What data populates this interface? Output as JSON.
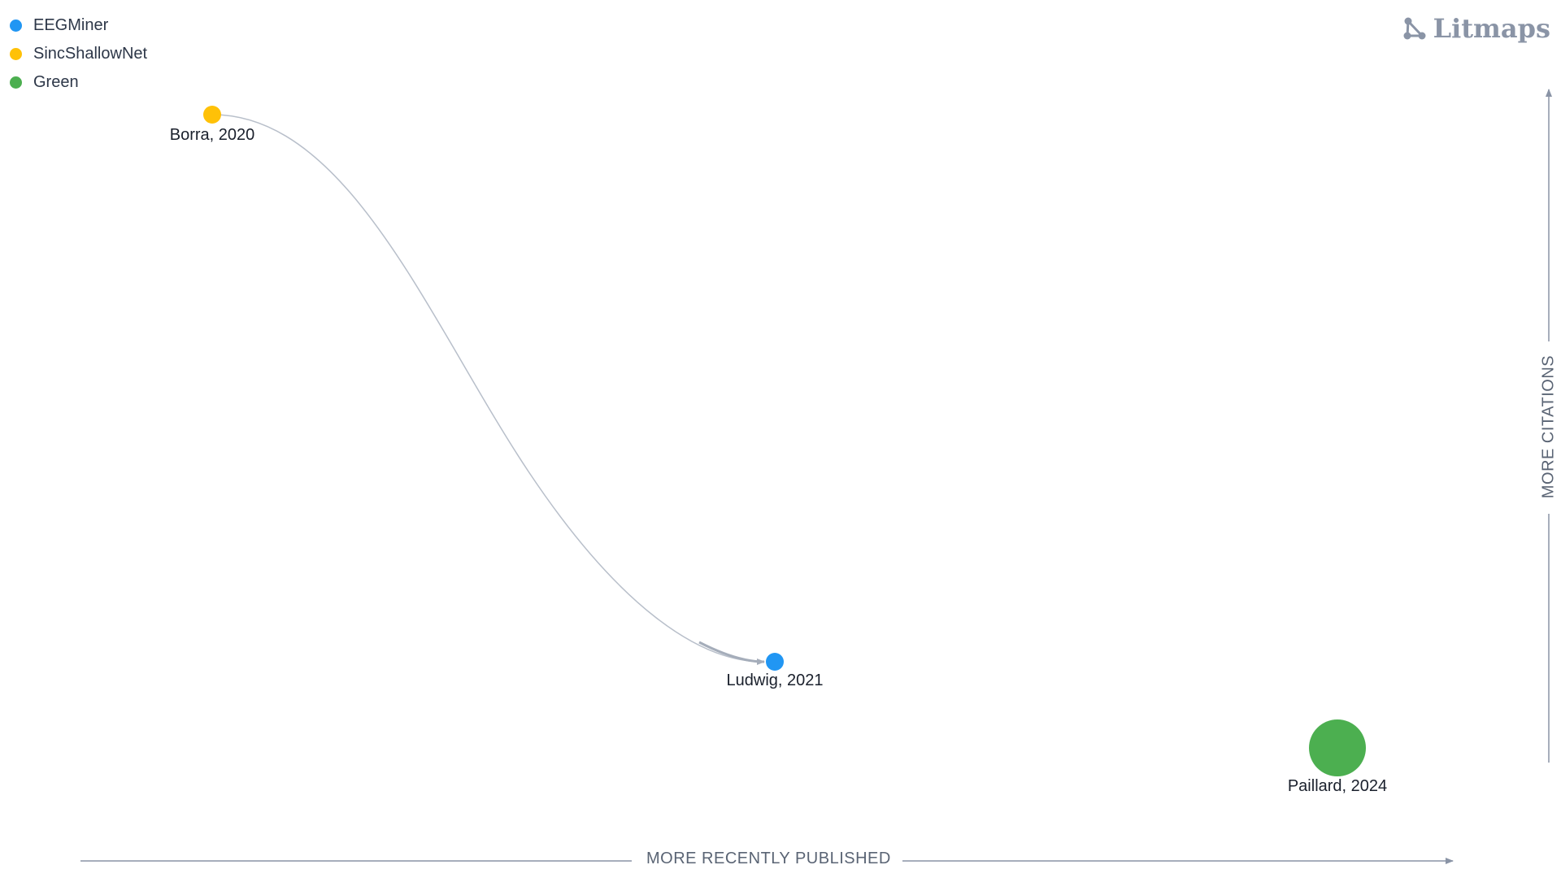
{
  "legend": {
    "items": [
      {
        "label": "EEGMiner",
        "color": "#2196f3"
      },
      {
        "label": "SincShallowNet",
        "color": "#ffc107"
      },
      {
        "label": "Green",
        "color": "#4caf50"
      }
    ]
  },
  "logo": {
    "text": "Litmaps",
    "icon": "litmaps-logo-icon"
  },
  "axes": {
    "x_label": "MORE RECENTLY PUBLISHED",
    "y_label": "MORE CITATIONS"
  },
  "nodes": [
    {
      "id": "borra",
      "label": "Borra, 2020",
      "color": "#ffc107"
    },
    {
      "id": "ludwig",
      "label": "Ludwig, 2021",
      "color": "#2196f3"
    },
    {
      "id": "paillard",
      "label": "Paillard, 2024",
      "color": "#4caf50"
    }
  ],
  "links": [
    {
      "from": "borra",
      "to": "ludwig"
    }
  ],
  "colors": {
    "axis": "#8a94a6",
    "link": "#b8bfca"
  }
}
